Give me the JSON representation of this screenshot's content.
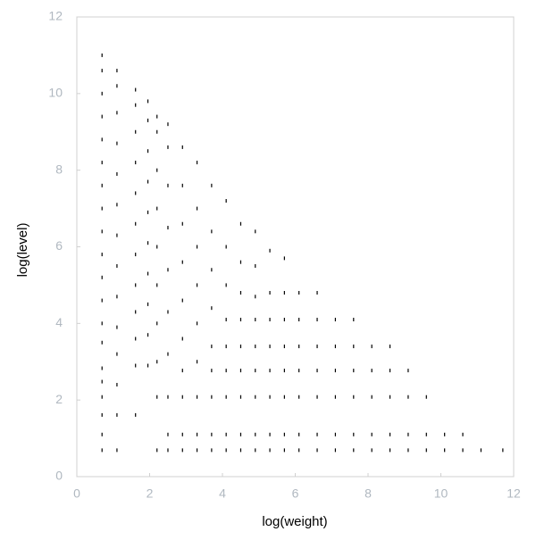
{
  "chart_data": {
    "type": "scatter",
    "xlabel": "log(weight)",
    "ylabel": "log(level)",
    "color": "#000000",
    "xlim": [
      0,
      12
    ],
    "ylim": [
      0,
      12
    ],
    "xticks": [
      0,
      2,
      4,
      6,
      8,
      10,
      12
    ],
    "yticks": [
      0,
      2,
      4,
      6,
      8,
      10,
      12
    ],
    "grid": false,
    "x": [
      0.69,
      0.69,
      0.69,
      0.69,
      0.69,
      0.69,
      0.69,
      0.69,
      0.69,
      0.69,
      0.69,
      0.69,
      0.69,
      0.69,
      0.69,
      0.69,
      0.69,
      0.69,
      0.69,
      0.69,
      1.1,
      1.1,
      1.1,
      1.1,
      1.1,
      1.1,
      1.1,
      1.1,
      1.1,
      1.1,
      1.1,
      1.1,
      1.1,
      1.1,
      1.61,
      1.61,
      1.61,
      1.61,
      1.61,
      1.61,
      1.61,
      1.61,
      1.61,
      1.61,
      1.61,
      1.61,
      1.95,
      1.95,
      1.95,
      1.95,
      1.95,
      1.95,
      1.95,
      1.95,
      1.95,
      1.95,
      2.2,
      2.2,
      2.2,
      2.2,
      2.2,
      2.2,
      2.2,
      2.2,
      2.2,
      2.2,
      2.5,
      2.5,
      2.5,
      2.5,
      2.5,
      2.5,
      2.5,
      2.5,
      2.5,
      2.5,
      2.9,
      2.9,
      2.9,
      2.9,
      2.9,
      2.9,
      2.9,
      2.9,
      2.9,
      2.9,
      3.3,
      3.3,
      3.3,
      3.3,
      3.3,
      3.3,
      3.3,
      3.3,
      3.3,
      3.7,
      3.7,
      3.7,
      3.7,
      3.7,
      3.7,
      3.7,
      3.7,
      3.7,
      4.1,
      4.1,
      4.1,
      4.1,
      4.1,
      4.1,
      4.1,
      4.1,
      4.1,
      4.5,
      4.5,
      4.5,
      4.5,
      4.5,
      4.5,
      4.5,
      4.5,
      4.5,
      4.9,
      4.9,
      4.9,
      4.9,
      4.9,
      4.9,
      4.9,
      4.9,
      4.9,
      5.3,
      5.3,
      5.3,
      5.3,
      5.3,
      5.3,
      5.3,
      5.3,
      5.7,
      5.7,
      5.7,
      5.7,
      5.7,
      5.7,
      5.7,
      5.7,
      6.1,
      6.1,
      6.1,
      6.1,
      6.1,
      6.1,
      6.1,
      6.6,
      6.6,
      6.6,
      6.6,
      6.6,
      6.6,
      6.6,
      7.1,
      7.1,
      7.1,
      7.1,
      7.1,
      7.1,
      7.6,
      7.6,
      7.6,
      7.6,
      7.6,
      7.6,
      8.1,
      8.1,
      8.1,
      8.1,
      8.1,
      8.6,
      8.6,
      8.6,
      8.6,
      8.6,
      9.1,
      9.1,
      9.1,
      9.1,
      9.6,
      9.6,
      9.6,
      10.1,
      10.1,
      10.6,
      10.6,
      11.1,
      11.7
    ],
    "values": [
      0.69,
      1.1,
      1.61,
      2.08,
      2.48,
      2.83,
      3.5,
      4.0,
      4.6,
      5.2,
      5.8,
      6.4,
      7.0,
      7.6,
      8.2,
      8.8,
      9.4,
      10.0,
      10.6,
      11.0,
      0.69,
      1.61,
      2.4,
      3.2,
      3.9,
      4.7,
      5.5,
      6.3,
      7.1,
      7.9,
      8.7,
      9.5,
      10.2,
      10.6,
      1.61,
      2.9,
      3.6,
      4.3,
      5.0,
      5.8,
      6.6,
      7.4,
      8.2,
      9.0,
      9.7,
      10.1,
      2.9,
      3.7,
      4.5,
      5.3,
      6.1,
      6.9,
      7.7,
      8.5,
      9.3,
      9.8,
      0.69,
      2.08,
      3.0,
      4.0,
      5.0,
      6.0,
      7.0,
      8.0,
      9.0,
      9.4,
      0.69,
      1.1,
      2.08,
      3.2,
      4.3,
      5.4,
      6.5,
      7.6,
      8.6,
      9.2,
      0.69,
      1.1,
      2.08,
      2.77,
      3.6,
      4.6,
      5.6,
      6.6,
      7.6,
      8.6,
      0.69,
      1.1,
      2.08,
      3.0,
      4.0,
      5.0,
      6.0,
      7.0,
      8.2,
      0.69,
      1.1,
      2.08,
      2.77,
      3.4,
      4.4,
      5.4,
      6.4,
      7.6,
      0.69,
      1.1,
      2.08,
      2.77,
      3.4,
      4.1,
      5.0,
      6.0,
      7.2,
      0.69,
      1.1,
      2.08,
      2.77,
      3.4,
      4.1,
      4.8,
      5.6,
      6.6,
      0.69,
      1.1,
      2.08,
      2.77,
      3.4,
      4.1,
      4.7,
      5.5,
      6.4,
      0.69,
      1.1,
      2.08,
      2.77,
      3.4,
      4.1,
      4.8,
      5.9,
      0.69,
      1.1,
      2.08,
      2.77,
      3.4,
      4.1,
      4.8,
      5.7,
      0.69,
      1.1,
      2.08,
      2.77,
      3.4,
      4.1,
      4.8,
      0.69,
      1.1,
      2.08,
      2.77,
      3.4,
      4.1,
      4.8,
      0.69,
      1.1,
      2.08,
      2.77,
      3.4,
      4.1,
      0.69,
      1.1,
      2.08,
      2.77,
      3.4,
      4.1,
      0.69,
      1.1,
      2.08,
      2.77,
      3.4,
      0.69,
      1.1,
      2.08,
      2.77,
      3.4,
      0.69,
      1.1,
      2.08,
      2.77,
      0.69,
      1.1,
      2.08,
      0.69,
      1.1,
      0.69,
      1.1,
      0.69,
      0.69
    ]
  }
}
